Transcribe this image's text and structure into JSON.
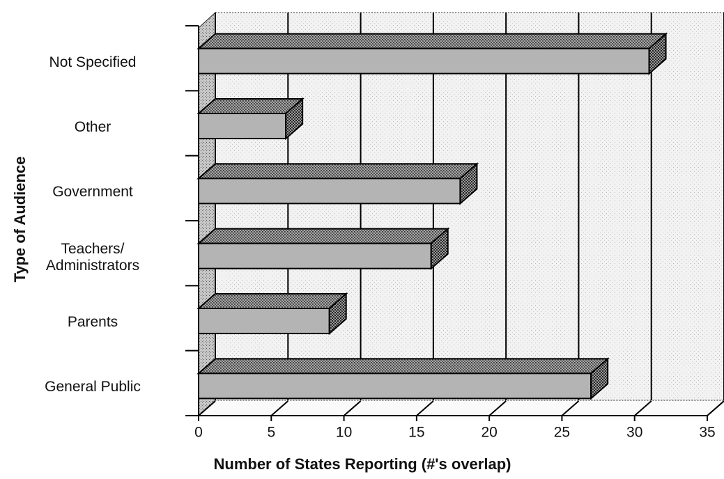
{
  "chart_data": {
    "type": "bar",
    "orientation": "horizontal",
    "categories": [
      "Not Specified",
      "Other",
      "Government",
      "Teachers/\nAdministrators",
      "Parents",
      "General Public"
    ],
    "values": [
      31,
      6,
      18,
      16,
      9,
      27
    ],
    "color": "#b4b4b4",
    "xlim": [
      0,
      35
    ],
    "xticks": [
      0,
      5,
      10,
      15,
      20,
      25,
      30,
      35
    ],
    "xlabel": "Number of States Reporting (#'s overlap)",
    "ylabel": "Type of Audience",
    "grid": true
  }
}
